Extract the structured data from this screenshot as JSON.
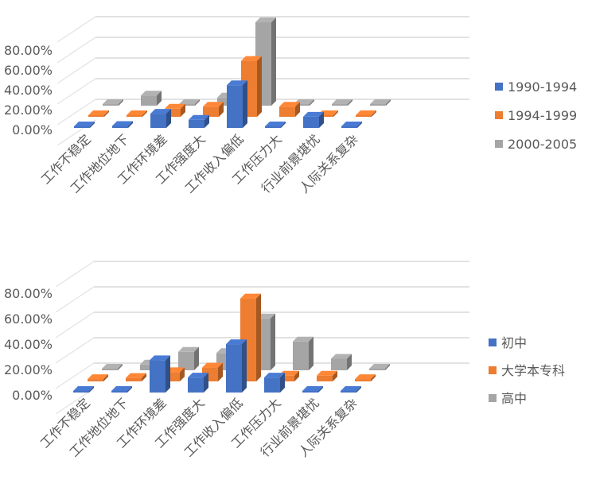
{
  "chart_data": [
    {
      "type": "bar",
      "title": "",
      "categories": [
        "工作不稳定",
        "工作地位地下",
        "工作环境差",
        "工作强度大",
        "工作收入偏低",
        "工作压力大",
        "行业前景堪忧",
        "人际关系复杂"
      ],
      "yticks": [
        "0.00%",
        "20.00%",
        "40.00%",
        "60.00%",
        "80.00%"
      ],
      "ylim": [
        0,
        100
      ],
      "legend_position": "right",
      "series": [
        {
          "name": "1990-1994",
          "color": "#4472c4",
          "values": [
            0,
            2,
            14,
            8,
            42,
            1,
            11,
            0
          ]
        },
        {
          "name": "1994-1999",
          "color": "#ed7d31",
          "values": [
            1,
            1,
            8,
            10,
            55,
            10,
            1,
            1
          ]
        },
        {
          "name": "2000-2005",
          "color": "#a5a5a5",
          "values": [
            0,
            10,
            0,
            8,
            82,
            0,
            0,
            0
          ]
        }
      ]
    },
    {
      "type": "bar",
      "title": "",
      "categories": [
        "工作不稳定",
        "工作地位地下",
        "工作环境差",
        "工作强度大",
        "工作收入偏低",
        "工作压力大",
        "行业前景堪忧",
        "人际关系复杂"
      ],
      "yticks": [
        "0.00%",
        "20.00%",
        "40.00%",
        "60.00%",
        "80.00%"
      ],
      "ylim": [
        0,
        100
      ],
      "legend_position": "right",
      "series": [
        {
          "name": "初中",
          "color": "#4472c4",
          "values": [
            0,
            0,
            28,
            13,
            42,
            13,
            0,
            0
          ]
        },
        {
          "name": "大学本专科",
          "color": "#ed7d31",
          "values": [
            2,
            3,
            8,
            12,
            72,
            5,
            5,
            2
          ]
        },
        {
          "name": "高中",
          "color": "#a5a5a5",
          "values": [
            0,
            5,
            16,
            15,
            45,
            25,
            10,
            0
          ]
        }
      ]
    }
  ]
}
